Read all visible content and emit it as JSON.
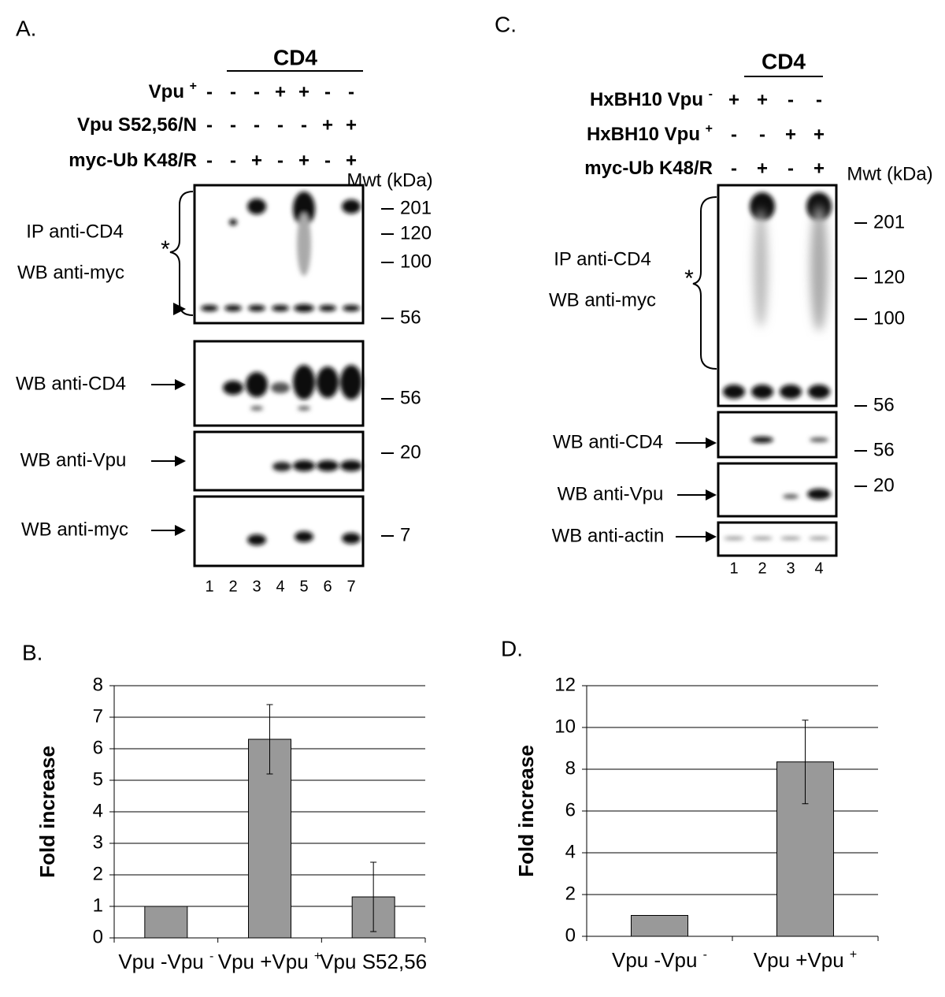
{
  "panel_a": {
    "letter": "A.",
    "header": "CD4",
    "rows": [
      {
        "label": "Vpu",
        "sup": "+",
        "signs": [
          "-",
          "-",
          "-",
          "+",
          "+",
          "-",
          "-"
        ]
      },
      {
        "label": "Vpu S52,56/N",
        "signs": [
          "-",
          "-",
          "-",
          "-",
          "-",
          "+",
          "+"
        ]
      },
      {
        "label": "myc-Ub K48/R",
        "signs": [
          "-",
          "-",
          "+",
          "-",
          "+",
          "-",
          "+"
        ]
      }
    ],
    "mwt_title": "Mwt (kDa)",
    "asterisk": "*",
    "blots": [
      {
        "label": [
          "IP anti-CD4",
          "WB anti-myc"
        ],
        "markers": [
          201,
          120,
          100,
          56
        ]
      },
      {
        "label": [
          "WB anti-CD4"
        ],
        "markers": [
          56
        ]
      },
      {
        "label": [
          "WB anti-Vpu"
        ],
        "markers": [
          20
        ]
      },
      {
        "label": [
          "WB anti-myc"
        ],
        "markers": [
          7
        ]
      }
    ],
    "lanes": [
      1,
      2,
      3,
      4,
      5,
      6,
      7
    ]
  },
  "panel_c": {
    "letter": "C.",
    "header": "CD4",
    "rows": [
      {
        "label": "HxBH10 Vpu",
        "sup": "-",
        "signs": [
          "+",
          "+",
          "-",
          "-"
        ]
      },
      {
        "label": "HxBH10 Vpu",
        "sup": "+",
        "signs": [
          "-",
          "-",
          "+",
          "+"
        ]
      },
      {
        "label": "myc-Ub K48/R",
        "signs": [
          "-",
          "+",
          "-",
          "+"
        ]
      }
    ],
    "mwt_title": "Mwt (kDa)",
    "asterisk": "*",
    "blots": [
      {
        "label": [
          "IP anti-CD4",
          "WB anti-myc"
        ],
        "markers": [
          201,
          120,
          100,
          56
        ]
      },
      {
        "label": [
          "WB anti-CD4"
        ],
        "markers": [
          56
        ]
      },
      {
        "label": [
          "WB anti-Vpu"
        ],
        "markers": [
          20
        ]
      },
      {
        "label": [
          "WB anti-actin"
        ],
        "markers": []
      }
    ],
    "lanes": [
      1,
      2,
      3,
      4
    ]
  },
  "chart_data": [
    {
      "type": "bar",
      "letter": "B.",
      "ylabel": "Fold increase",
      "categories": [
        "Vpu -",
        "Vpu +",
        "Vpu S52,56"
      ],
      "values": [
        1,
        6.3,
        1.3
      ],
      "errors": [
        null,
        1.1,
        1.1
      ],
      "color": "#999999",
      "ylim": [
        0,
        8
      ],
      "yticks": [
        0,
        1,
        2,
        3,
        4,
        5,
        6,
        7,
        8
      ],
      "grid": true
    },
    {
      "type": "bar",
      "letter": "D.",
      "ylabel": "Fold increase",
      "categories": [
        "Vpu -",
        "Vpu +"
      ],
      "values": [
        1,
        8.35
      ],
      "errors": [
        null,
        2.0
      ],
      "color": "#999999",
      "ylim": [
        0,
        12
      ],
      "yticks": [
        0,
        2,
        4,
        6,
        8,
        10,
        12
      ],
      "grid": true
    }
  ]
}
